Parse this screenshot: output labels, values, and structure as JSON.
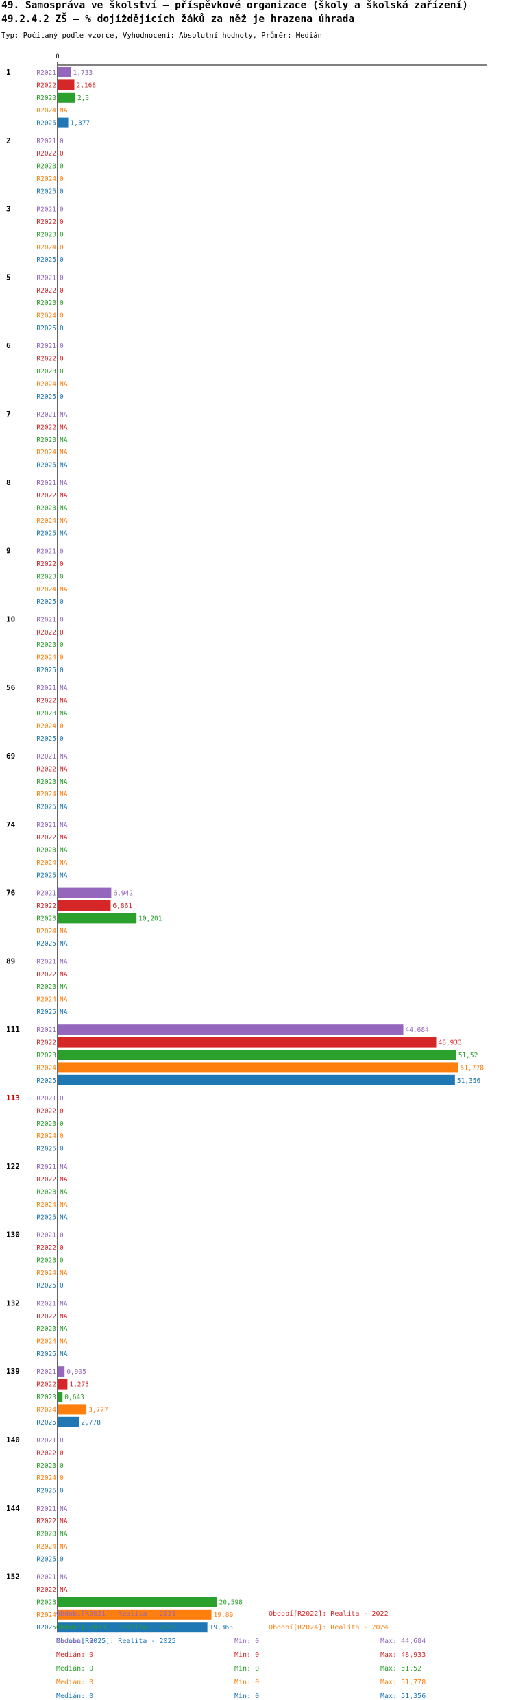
{
  "header": {
    "title": "49. Samospráva ve školství – příspěvkové organizace (školy a školská zařízení)",
    "subtitle": "49.2.4.2 ZŠ – % dojíždějících žáků za něž je hrazena úhrada",
    "meta": "Typ: Počítaný podle vzorce, Vyhodnocení: Absolutní hodnoty, Průměr: Medián"
  },
  "colors": {
    "R2021": "#9467bd",
    "R2022": "#d62728",
    "R2023": "#2ca02c",
    "R2024": "#ff7f0e",
    "R2025": "#1f77b4",
    "highlight": "#cc0000"
  },
  "chart_data": {
    "type": "bar",
    "orientation": "horizontal",
    "x_tick_labels": [
      "0"
    ],
    "xlim": [
      0,
      55
    ],
    "series_names": [
      "R2021",
      "R2022",
      "R2023",
      "R2024",
      "R2025"
    ],
    "groups": [
      {
        "label": "1",
        "highlight": false,
        "values": [
          "1,733",
          "2,168",
          "2,3",
          "NA",
          "1,377"
        ]
      },
      {
        "label": "2",
        "highlight": false,
        "values": [
          "0",
          "0",
          "0",
          "0",
          "0"
        ]
      },
      {
        "label": "3",
        "highlight": false,
        "values": [
          "0",
          "0",
          "0",
          "0",
          "0"
        ]
      },
      {
        "label": "5",
        "highlight": false,
        "values": [
          "0",
          "0",
          "0",
          "0",
          "0"
        ]
      },
      {
        "label": "6",
        "highlight": false,
        "values": [
          "0",
          "0",
          "0",
          "NA",
          "0"
        ]
      },
      {
        "label": "7",
        "highlight": false,
        "values": [
          "NA",
          "NA",
          "NA",
          "NA",
          "NA"
        ]
      },
      {
        "label": "8",
        "highlight": false,
        "values": [
          "NA",
          "NA",
          "NA",
          "NA",
          "NA"
        ]
      },
      {
        "label": "9",
        "highlight": false,
        "values": [
          "0",
          "0",
          "0",
          "NA",
          "0"
        ]
      },
      {
        "label": "10",
        "highlight": false,
        "values": [
          "0",
          "0",
          "0",
          "0",
          "0"
        ]
      },
      {
        "label": "56",
        "highlight": false,
        "values": [
          "NA",
          "NA",
          "NA",
          "0",
          "0"
        ]
      },
      {
        "label": "69",
        "highlight": false,
        "values": [
          "NA",
          "NA",
          "NA",
          "NA",
          "NA"
        ]
      },
      {
        "label": "74",
        "highlight": false,
        "values": [
          "NA",
          "NA",
          "NA",
          "NA",
          "NA"
        ]
      },
      {
        "label": "76",
        "highlight": false,
        "values": [
          "6,942",
          "6,861",
          "10,201",
          "NA",
          "NA"
        ]
      },
      {
        "label": "89",
        "highlight": false,
        "values": [
          "NA",
          "NA",
          "NA",
          "NA",
          "NA"
        ]
      },
      {
        "label": "111",
        "highlight": false,
        "values": [
          "44,684",
          "48,933",
          "51,52",
          "51,778",
          "51,356"
        ]
      },
      {
        "label": "113",
        "highlight": true,
        "values": [
          "0",
          "0",
          "0",
          "0",
          "0"
        ]
      },
      {
        "label": "122",
        "highlight": false,
        "values": [
          "NA",
          "NA",
          "NA",
          "NA",
          "NA"
        ]
      },
      {
        "label": "130",
        "highlight": false,
        "values": [
          "0",
          "0",
          "0",
          "NA",
          "0"
        ]
      },
      {
        "label": "132",
        "highlight": false,
        "values": [
          "NA",
          "NA",
          "NA",
          "NA",
          "NA"
        ]
      },
      {
        "label": "139",
        "highlight": false,
        "values": [
          "0,905",
          "1,273",
          "0,643",
          "3,727",
          "2,778"
        ]
      },
      {
        "label": "140",
        "highlight": false,
        "values": [
          "0",
          "0",
          "0",
          "0",
          "0"
        ]
      },
      {
        "label": "144",
        "highlight": false,
        "values": [
          "NA",
          "NA",
          "NA",
          "NA",
          "0"
        ]
      },
      {
        "label": "152",
        "highlight": false,
        "values": [
          "NA",
          "NA",
          "20,598",
          "19,89",
          "19,363"
        ]
      }
    ]
  },
  "legend": {
    "periods": [
      "Období[R2021]: Realita - 2021",
      "Období[R2022]: Realita - 2022",
      "Období[R2023]: Realita - 2023",
      "Období[R2024]: Realita - 2024",
      "Období[R2025]: Realita - 2025"
    ],
    "stats": [
      {
        "median": "Medián: 0",
        "min": "Min: 0",
        "max": "Max: 44,684"
      },
      {
        "median": "Medián: 0",
        "min": "Min: 0",
        "max": "Max: 48,933"
      },
      {
        "median": "Medián: 0",
        "min": "Min: 0",
        "max": "Max: 51,52"
      },
      {
        "median": "Medián: 0",
        "min": "Min: 0",
        "max": "Max: 51,778"
      },
      {
        "median": "Medián: 0",
        "min": "Min: 0",
        "max": "Max: 51,356"
      }
    ]
  }
}
